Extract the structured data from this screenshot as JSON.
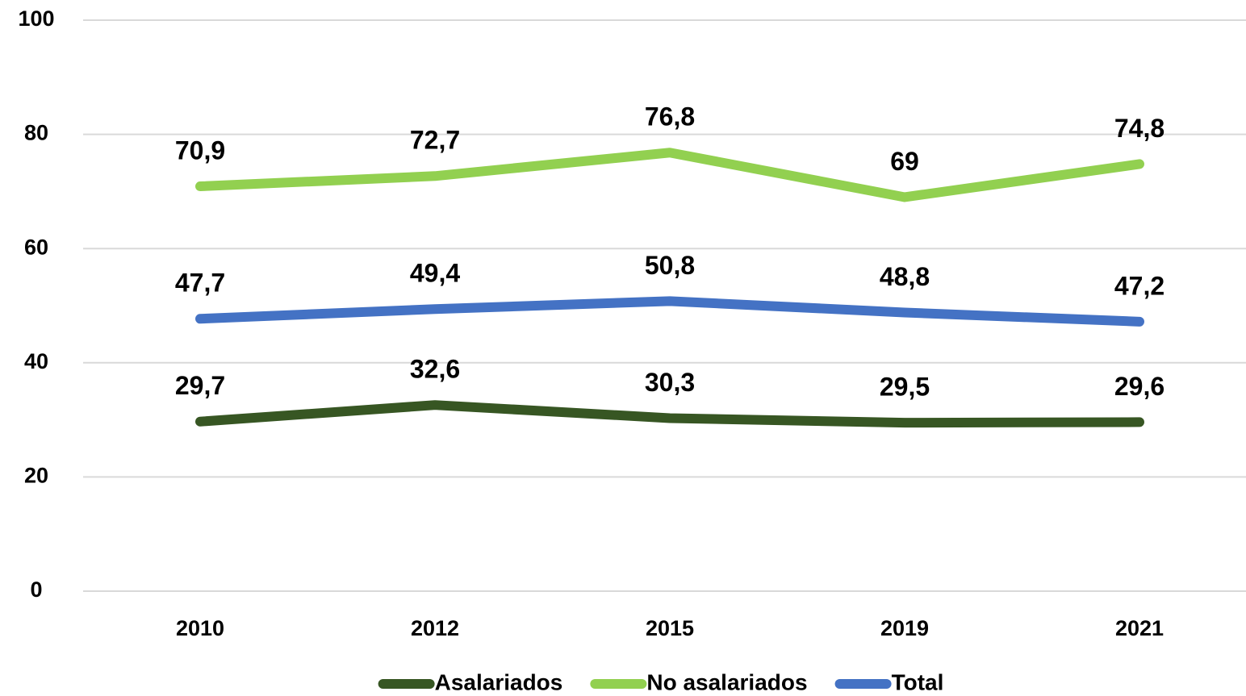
{
  "chart_data": {
    "type": "line",
    "categories": [
      "2010",
      "2012",
      "2015",
      "2019",
      "2021"
    ],
    "series": [
      {
        "name": "Asalariados",
        "color": "#375623",
        "values": [
          29.7,
          32.6,
          30.3,
          29.5,
          29.6
        ],
        "value_labels": [
          "29,7",
          "32,6",
          "30,3",
          "29,5",
          "29,6"
        ]
      },
      {
        "name": "No asalariados",
        "color": "#92d050",
        "values": [
          70.9,
          72.7,
          76.8,
          69,
          74.8
        ],
        "value_labels": [
          "70,9",
          "72,7",
          "76,8",
          "69",
          "74,8"
        ]
      },
      {
        "name": "Total",
        "color": "#4472c4",
        "values": [
          47.7,
          49.4,
          50.8,
          48.8,
          47.2
        ],
        "value_labels": [
          "47,7",
          "49,4",
          "50,8",
          "48,8",
          "47,2"
        ]
      }
    ],
    "ylim": [
      0,
      100
    ],
    "yticks": [
      0,
      20,
      40,
      60,
      80,
      100
    ],
    "grid": true,
    "legend": "bottom"
  }
}
